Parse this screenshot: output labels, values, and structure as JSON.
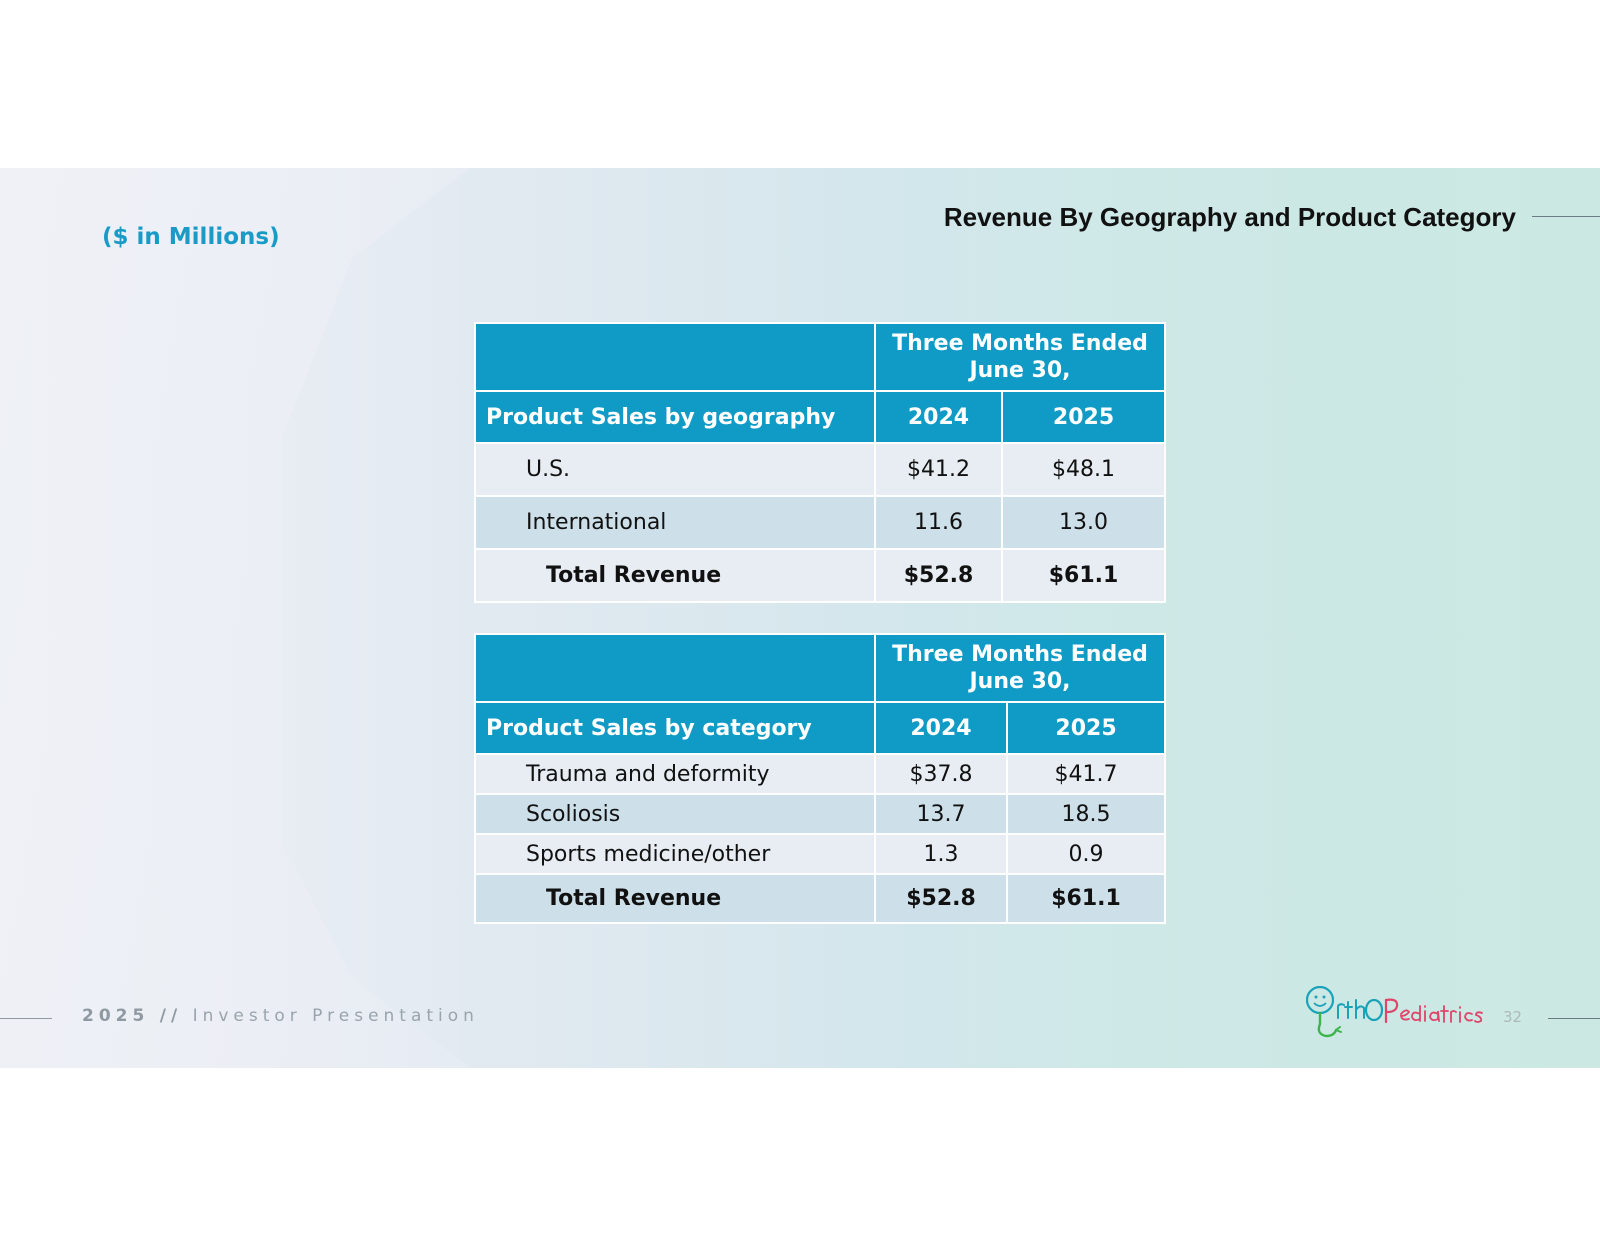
{
  "slide": {
    "subtitle": "($ in Millions)",
    "title": "Revenue By Geography and Product Category"
  },
  "geography_table": {
    "period_header": "Three Months Ended June 30,",
    "label_header": "Product Sales by geography",
    "year_1": "2024",
    "year_2": "2025",
    "rows": [
      {
        "label": "U.S.",
        "v2024": "$41.2",
        "v2025": "$48.1"
      },
      {
        "label": "International",
        "v2024": "11.6",
        "v2025": "13.0"
      }
    ],
    "total": {
      "label": "Total Revenue",
      "v2024": "$52.8",
      "v2025": "$61.1"
    }
  },
  "category_table": {
    "period_header": "Three Months Ended June 30,",
    "label_header": "Product Sales by category",
    "year_1": "2024",
    "year_2": "2025",
    "rows": [
      {
        "label": "Trauma and deformity",
        "v2024": "$37.8",
        "v2025": "$41.7"
      },
      {
        "label": "Scoliosis",
        "v2024": "13.7",
        "v2025": "18.5"
      },
      {
        "label": "Sports medicine/other",
        "v2024": "1.3",
        "v2025": "0.9"
      }
    ],
    "total": {
      "label": "Total Revenue",
      "v2024": "$52.8",
      "v2025": "$61.1"
    }
  },
  "footer": {
    "year": "2025",
    "separator": "//",
    "label": "Investor Presentation",
    "page_number": "32"
  },
  "logo": {
    "icon": "orthopediatrics-logo",
    "colors": {
      "teal": "#1aa3b8",
      "pink": "#e0446a",
      "green": "#3bb44a"
    }
  }
}
